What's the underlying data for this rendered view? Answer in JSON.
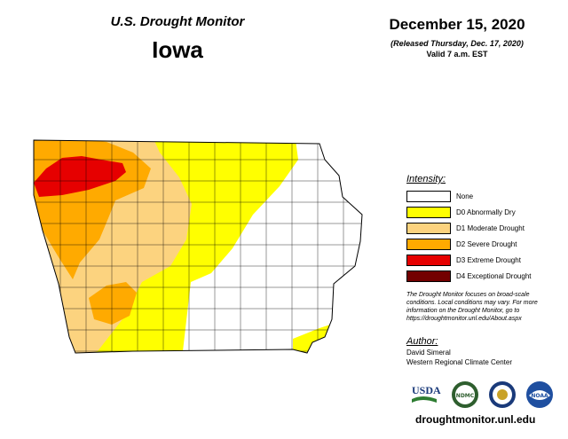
{
  "header": {
    "product": "U.S. Drought Monitor",
    "state": "Iowa",
    "date": "December 15, 2020",
    "released": "(Released Thursday, Dec. 17, 2020)",
    "valid": "Valid 7 a.m. EST"
  },
  "legend": {
    "title": "Intensity:",
    "items": [
      {
        "label": "None",
        "color": "#ffffff"
      },
      {
        "label": "D0 Abnormally Dry",
        "color": "#ffff00"
      },
      {
        "label": "D1 Moderate Drought",
        "color": "#fcd37f"
      },
      {
        "label": "D2 Severe Drought",
        "color": "#ffaa00"
      },
      {
        "label": "D3 Extreme Drought",
        "color": "#e60000"
      },
      {
        "label": "D4 Exceptional Drought",
        "color": "#730000"
      }
    ]
  },
  "note": "The Drought Monitor focuses on broad-scale conditions. Local conditions may vary. For more information on the Drought Monitor, go to https://droughtmonitor.unl.edu/About.aspx",
  "author": {
    "title": "Author:",
    "name": "David Simeral",
    "org": "Western Regional Climate Center"
  },
  "logos": [
    {
      "name": "usda-logo",
      "text": "USDA"
    },
    {
      "name": "ndmc-logo",
      "text": "NDMC"
    },
    {
      "name": "doc-seal",
      "text": ""
    },
    {
      "name": "noaa-logo",
      "text": "NOAA"
    }
  ],
  "url": "droughtmonitor.unl.edu"
}
